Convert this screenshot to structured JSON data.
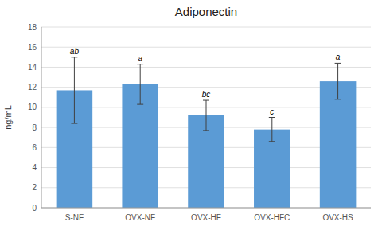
{
  "chart_data": {
    "type": "bar",
    "title": "Adiponectin",
    "y_label": "ng/mL",
    "categories": [
      "S-NF",
      "OVX-NF",
      "OVX-HF",
      "OVX-HFC",
      "OVX-HS"
    ],
    "values": [
      11.7,
      12.3,
      9.2,
      7.8,
      12.6
    ],
    "errors": [
      3.3,
      2.0,
      1.5,
      1.2,
      1.8
    ],
    "annotations": [
      "ab",
      "a",
      "bc",
      "c",
      "a"
    ],
    "color": "#5B9BD5",
    "ylim": [
      0,
      18
    ],
    "yticks": [
      0,
      2,
      4,
      6,
      8,
      10,
      12,
      14,
      16,
      18
    ],
    "grid": true
  }
}
